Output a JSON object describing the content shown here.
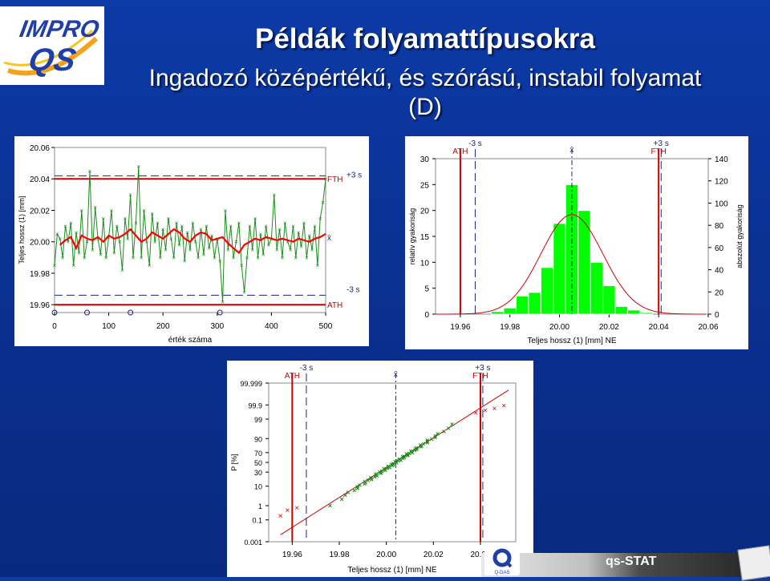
{
  "logo": {
    "line1": "IMPRO",
    "line2": "QS"
  },
  "slide": {
    "title": "Példák folyamattípusokra",
    "subtitle_line1": "Ingadozó középértékű, és szórású, instabil folyamat",
    "subtitle_line2": "(D)"
  },
  "branding": {
    "product": "qs-STAT",
    "company": "Q-DAS"
  },
  "colors": {
    "background": "#0a2f8f",
    "green": "#00ff00",
    "dark_green": "#1a8c1a",
    "red": "#cc0000",
    "blue_dash": "#1a237e"
  },
  "chart_data": [
    {
      "type": "line",
      "ylabel": "Teljes hossz (1) [mm]",
      "xlabel": "érték száma",
      "xticks": [
        "0",
        "100",
        "200",
        "300",
        "400",
        "500"
      ],
      "yticks": [
        "19.96",
        "19.98",
        "20.00",
        "20.02",
        "20.04",
        "20.06"
      ],
      "xlim": [
        0,
        500
      ],
      "ylim": [
        19.955,
        20.06
      ],
      "limits": {
        "FTH": 20.04,
        "ATH": 19.96,
        "plus3s": 20.042,
        "minus3s": 19.966,
        "mean": 20.003
      },
      "limit_labels": {
        "FTH": "FTH",
        "ATH": "ATH",
        "plus3s": "+3 s",
        "minus3s": "-3 s",
        "mean": "x̄"
      },
      "raw_series": [
        [
          0,
          19.985
        ],
        [
          5,
          20.005
        ],
        [
          10,
          20.002
        ],
        [
          15,
          19.99
        ],
        [
          20,
          20.01
        ],
        [
          25,
          20.0
        ],
        [
          30,
          20.012
        ],
        [
          35,
          19.985
        ],
        [
          40,
          20.006
        ],
        [
          45,
          19.993
        ],
        [
          50,
          20.02
        ],
        [
          55,
          19.99
        ],
        [
          60,
          20.0
        ],
        [
          65,
          20.045
        ],
        [
          70,
          19.995
        ],
        [
          75,
          20.022
        ],
        [
          80,
          20.002
        ],
        [
          85,
          19.992
        ],
        [
          90,
          20.015
        ],
        [
          95,
          19.99
        ],
        [
          100,
          20.003
        ],
        [
          105,
          20.02
        ],
        [
          110,
          19.993
        ],
        [
          115,
          20.01
        ],
        [
          120,
          20.0
        ],
        [
          125,
          19.982
        ],
        [
          130,
          20.015
        ],
        [
          135,
          20.002
        ],
        [
          140,
          20.03
        ],
        [
          145,
          19.99
        ],
        [
          150,
          20.012
        ],
        [
          155,
          20.048
        ],
        [
          160,
          19.99
        ],
        [
          165,
          20.02
        ],
        [
          170,
          20.0
        ],
        [
          175,
          19.985
        ],
        [
          180,
          20.018
        ],
        [
          185,
          20.0
        ],
        [
          190,
          20.012
        ],
        [
          195,
          19.99
        ],
        [
          200,
          20.008
        ],
        [
          205,
          19.995
        ],
        [
          210,
          20.015
        ],
        [
          215,
          20.002
        ],
        [
          220,
          19.99
        ],
        [
          225,
          20.012
        ],
        [
          230,
          19.998
        ],
        [
          235,
          20.01
        ],
        [
          240,
          19.988
        ],
        [
          245,
          20.006
        ],
        [
          250,
          19.995
        ],
        [
          255,
          20.012
        ],
        [
          260,
          20.0
        ],
        [
          265,
          19.99
        ],
        [
          270,
          20.008
        ],
        [
          275,
          19.992
        ],
        [
          280,
          20.01
        ],
        [
          285,
          19.996
        ],
        [
          290,
          20.004
        ],
        [
          295,
          19.99
        ],
        [
          300,
          20.002
        ],
        [
          305,
          19.988
        ],
        [
          310,
          19.962
        ],
        [
          315,
          20.02
        ],
        [
          320,
          19.995
        ],
        [
          325,
          20.01
        ],
        [
          330,
          19.99
        ],
        [
          335,
          20.0
        ],
        [
          340,
          20.012
        ],
        [
          345,
          19.985
        ],
        [
          350,
          19.968
        ],
        [
          355,
          19.99
        ],
        [
          360,
          20.01
        ],
        [
          365,
          19.995
        ],
        [
          370,
          20.015
        ],
        [
          375,
          19.99
        ],
        [
          380,
          20.005
        ],
        [
          385,
          19.992
        ],
        [
          390,
          20.01
        ],
        [
          395,
          19.998
        ],
        [
          400,
          20.002
        ],
        [
          405,
          20.03
        ],
        [
          410,
          19.995
        ],
        [
          415,
          20.008
        ],
        [
          420,
          19.99
        ],
        [
          425,
          20.012
        ],
        [
          430,
          20.0
        ],
        [
          435,
          19.995
        ],
        [
          440,
          20.01
        ],
        [
          445,
          19.99
        ],
        [
          450,
          20.006
        ],
        [
          455,
          19.997
        ],
        [
          460,
          20.012
        ],
        [
          465,
          19.99
        ],
        [
          470,
          20.004
        ],
        [
          475,
          19.995
        ],
        [
          480,
          20.01
        ],
        [
          485,
          19.985
        ],
        [
          490,
          20.015
        ],
        [
          495,
          20.025
        ],
        [
          500,
          20.04
        ]
      ],
      "mean_series": [
        [
          10,
          19.998
        ],
        [
          20,
          20.001
        ],
        [
          30,
          20.003
        ],
        [
          40,
          19.996
        ],
        [
          50,
          20.004
        ],
        [
          60,
          20.002
        ],
        [
          70,
          20.001
        ],
        [
          80,
          20.003
        ],
        [
          90,
          20.0
        ],
        [
          100,
          20.004
        ],
        [
          110,
          20.002
        ],
        [
          120,
          20.003
        ],
        [
          130,
          20.005
        ],
        [
          140,
          20.008
        ],
        [
          150,
          20.004
        ],
        [
          160,
          20.0
        ],
        [
          170,
          20.002
        ],
        [
          180,
          20.006
        ],
        [
          190,
          20.004
        ],
        [
          200,
          20.002
        ],
        [
          210,
          20.005
        ],
        [
          220,
          20.008
        ],
        [
          230,
          20.006
        ],
        [
          240,
          20.002
        ],
        [
          250,
          20.0
        ],
        [
          260,
          20.004
        ],
        [
          270,
          20.006
        ],
        [
          280,
          20.005
        ],
        [
          290,
          20.001
        ],
        [
          300,
          20.002
        ],
        [
          310,
          20.003
        ],
        [
          320,
          19.999
        ],
        [
          330,
          19.996
        ],
        [
          340,
          19.993
        ],
        [
          350,
          19.998
        ],
        [
          360,
          20.0
        ],
        [
          370,
          20.002
        ],
        [
          380,
          20.001
        ],
        [
          390,
          20.003
        ],
        [
          400,
          20.002
        ],
        [
          410,
          20.001
        ],
        [
          420,
          20.002
        ],
        [
          430,
          20.001
        ],
        [
          440,
          20.0
        ],
        [
          450,
          20.002
        ],
        [
          460,
          20.001
        ],
        [
          470,
          20.0
        ],
        [
          480,
          20.002
        ],
        [
          490,
          20.003
        ],
        [
          500,
          20.005
        ]
      ]
    },
    {
      "type": "bar",
      "xlabel": "Teljes hossz (1) [mm] NE",
      "ylabel": "relatív gyakoriság",
      "y2label": "abszolút gyakoriság",
      "xticks": [
        "19.96",
        "19.98",
        "20.00",
        "20.02",
        "20.04",
        "20.06"
      ],
      "yticks": [
        "0",
        "5",
        "10",
        "15",
        "20",
        "25",
        "30"
      ],
      "y2ticks": [
        "0",
        "20",
        "40",
        "60",
        "80",
        "100",
        "120",
        "140"
      ],
      "xlim": [
        19.95,
        20.06
      ],
      "ylim": [
        0,
        30
      ],
      "y2lim": [
        0,
        140
      ],
      "bins": [
        19.975,
        19.98,
        19.985,
        19.99,
        19.995,
        20.0,
        20.005,
        20.01,
        20.015,
        20.02,
        20.025,
        20.03,
        20.035
      ],
      "values": [
        0.5,
        1.2,
        3.5,
        4.2,
        9.0,
        17.5,
        25.0,
        20.0,
        10.0,
        5.5,
        1.5,
        0.8,
        0.3
      ],
      "limits": {
        "ATH": 19.96,
        "FTH": 20.04,
        "minus3s": 19.966,
        "plus3s": 20.041,
        "mean": 20.005
      },
      "limit_labels": {
        "ATH": "ATH",
        "FTH": "FTH",
        "minus3s": "-3 s",
        "plus3s": "+3 s",
        "mean": "x̄"
      },
      "normal": {
        "mu": 20.005,
        "sigma": 0.0125,
        "peak": 19.2
      }
    },
    {
      "type": "scatter",
      "xlabel": "Teljes hossz (1) [mm] NE",
      "ylabel": "P [%]",
      "xticks": [
        "19.96",
        "19.98",
        "20.00",
        "20.02",
        "20.04"
      ],
      "yticks": [
        "0.001",
        "0.1",
        "1",
        "10",
        "30",
        "50",
        "70",
        "90",
        "99",
        "99.9",
        "99.999"
      ],
      "xlim": [
        19.95,
        20.055
      ],
      "limits": {
        "ATH": 19.96,
        "FTH": 20.04,
        "minus3s": 19.966,
        "plus3s": 20.041,
        "mean": 20.004
      },
      "limit_labels": {
        "ATH": "ATH",
        "FTH": "FTH",
        "minus3s": "-3 s",
        "plus3s": "+3 s",
        "mean": "x̄"
      },
      "red_points": [
        [
          19.955,
          0.2
        ],
        [
          19.958,
          0.5
        ],
        [
          19.962,
          0.7
        ],
        [
          20.038,
          99.6
        ],
        [
          20.042,
          99.72
        ],
        [
          20.046,
          99.8
        ],
        [
          20.05,
          99.88
        ]
      ],
      "line": [
        [
          19.955,
          0.005
        ],
        [
          20.052,
          99.995
        ]
      ]
    }
  ]
}
